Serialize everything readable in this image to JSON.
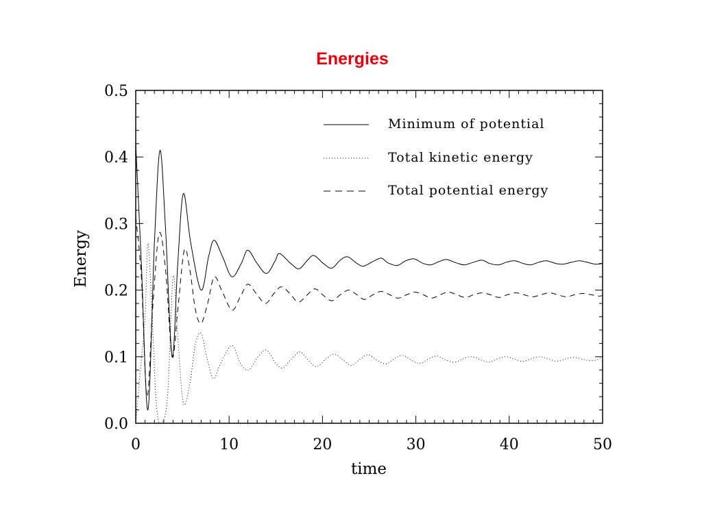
{
  "chart_data": {
    "type": "line",
    "title": "Energies",
    "title_color": "#e8000b",
    "xlabel": "time",
    "ylabel": "Energy",
    "xlim": [
      0,
      50
    ],
    "ylim": [
      0.0,
      0.5
    ],
    "x_ticks": [
      "0",
      "10",
      "20",
      "30",
      "40",
      "50"
    ],
    "y_ticks": [
      "0.0",
      "0.1",
      "0.2",
      "0.3",
      "0.4",
      "0.5"
    ],
    "grid": false,
    "legend_position": "top-right",
    "series": [
      {
        "name": "Minimum of potential",
        "line_style": "solid",
        "x": [
          0,
          0.6,
          1.3,
          2.0,
          2.6,
          3.2,
          3.9,
          4.5,
          5.1,
          5.9,
          7.0,
          7.8,
          8.4,
          9.3,
          10.3,
          11.3,
          12.0,
          13.0,
          14.0,
          14.9,
          15.4,
          16.6,
          17.5,
          18.4,
          19.1,
          20.1,
          21.0,
          21.9,
          22.7,
          23.7,
          24.4,
          25.4,
          26.3,
          27.0,
          28.0,
          28.9,
          29.8,
          30.8,
          31.6,
          32.5,
          33.3,
          34.3,
          35.2,
          36.2,
          37.1,
          37.9,
          38.9,
          39.7,
          40.6,
          41.5,
          42.3,
          43.2,
          44.0,
          45.0,
          45.8,
          46.7,
          47.5,
          48.3,
          49.2,
          50.0
        ],
        "y": [
          0.42,
          0.24,
          0.02,
          0.27,
          0.41,
          0.29,
          0.1,
          0.24,
          0.345,
          0.27,
          0.2,
          0.25,
          0.275,
          0.25,
          0.22,
          0.24,
          0.26,
          0.24,
          0.225,
          0.243,
          0.255,
          0.24,
          0.232,
          0.245,
          0.252,
          0.24,
          0.233,
          0.245,
          0.25,
          0.24,
          0.236,
          0.243,
          0.248,
          0.241,
          0.237,
          0.244,
          0.247,
          0.24,
          0.238,
          0.243,
          0.246,
          0.241,
          0.238,
          0.242,
          0.245,
          0.24,
          0.238,
          0.242,
          0.244,
          0.24,
          0.238,
          0.242,
          0.244,
          0.24,
          0.239,
          0.242,
          0.244,
          0.242,
          0.239,
          0.24
        ]
      },
      {
        "name": "Total kinetic energy",
        "line_style": "dotted",
        "x": [
          0,
          0.5,
          1.0,
          1.3,
          1.7,
          2.2,
          2.7,
          3.4,
          4.0,
          4.5,
          5.1,
          5.8,
          6.4,
          7.0,
          7.6,
          8.3,
          9.1,
          10.3,
          11.2,
          12.1,
          13.1,
          14.0,
          14.9,
          15.7,
          16.7,
          17.6,
          18.6,
          19.4,
          20.4,
          21.3,
          22.2,
          23.1,
          24.0,
          24.9,
          25.8,
          26.8,
          27.7,
          28.6,
          29.5,
          30.5,
          31.4,
          32.3,
          33.2,
          34.2,
          35.1,
          36.0,
          37.0,
          37.9,
          38.8,
          39.7,
          40.6,
          41.5,
          42.4,
          43.3,
          44.3,
          45.2,
          46.1,
          47.0,
          47.9,
          48.8,
          49.5,
          50.0
        ],
        "y": [
          0.0,
          0.08,
          0.16,
          0.27,
          0.18,
          0.03,
          0.0,
          0.04,
          0.22,
          0.13,
          0.03,
          0.06,
          0.12,
          0.135,
          0.1,
          0.067,
          0.09,
          0.117,
          0.09,
          0.08,
          0.1,
          0.11,
          0.092,
          0.083,
          0.097,
          0.107,
          0.093,
          0.085,
          0.097,
          0.104,
          0.095,
          0.087,
          0.096,
          0.103,
          0.095,
          0.089,
          0.097,
          0.102,
          0.095,
          0.09,
          0.097,
          0.101,
          0.095,
          0.092,
          0.097,
          0.1,
          0.095,
          0.092,
          0.097,
          0.1,
          0.096,
          0.093,
          0.097,
          0.1,
          0.096,
          0.093,
          0.097,
          0.099,
          0.096,
          0.094,
          0.096,
          0.1
        ]
      },
      {
        "name": "Total potential energy",
        "line_style": "dashed",
        "x": [
          0,
          0.6,
          1.2,
          1.8,
          2.5,
          3.2,
          3.9,
          4.5,
          5.2,
          5.8,
          6.4,
          7.0,
          7.7,
          8.4,
          9.2,
          10.3,
          11.2,
          12.0,
          12.9,
          13.9,
          14.8,
          15.6,
          16.5,
          17.4,
          18.3,
          19.2,
          20.1,
          21.0,
          21.9,
          22.8,
          23.7,
          24.5,
          25.4,
          26.3,
          27.2,
          28.1,
          29.0,
          29.9,
          30.8,
          31.7,
          32.6,
          33.5,
          34.4,
          35.3,
          36.2,
          37.1,
          38.0,
          38.9,
          39.8,
          40.7,
          41.6,
          42.5,
          43.4,
          44.3,
          45.2,
          46.1,
          47.0,
          47.9,
          48.8,
          49.6,
          50.0
        ],
        "y": [
          0.31,
          0.22,
          0.04,
          0.17,
          0.285,
          0.23,
          0.1,
          0.17,
          0.26,
          0.23,
          0.17,
          0.15,
          0.18,
          0.22,
          0.2,
          0.17,
          0.19,
          0.209,
          0.195,
          0.18,
          0.195,
          0.205,
          0.195,
          0.182,
          0.192,
          0.202,
          0.192,
          0.184,
          0.193,
          0.2,
          0.193,
          0.186,
          0.193,
          0.198,
          0.193,
          0.188,
          0.193,
          0.197,
          0.193,
          0.188,
          0.193,
          0.197,
          0.193,
          0.189,
          0.193,
          0.196,
          0.193,
          0.189,
          0.193,
          0.196,
          0.193,
          0.19,
          0.193,
          0.196,
          0.193,
          0.19,
          0.193,
          0.195,
          0.193,
          0.191,
          0.192
        ]
      }
    ]
  }
}
